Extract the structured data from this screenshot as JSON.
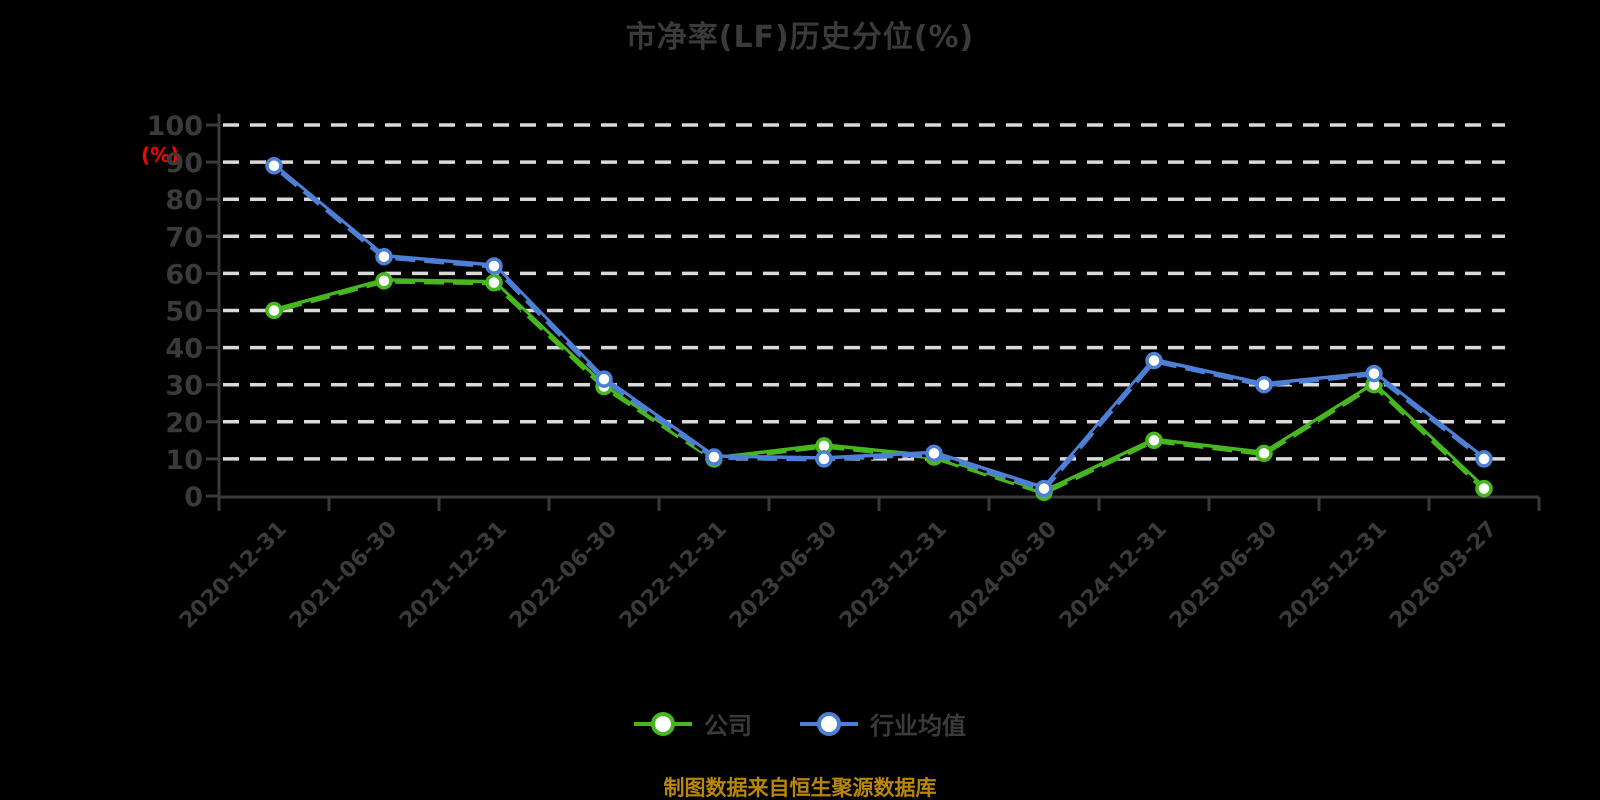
{
  "title": "市净率(LF)历史分位(%)",
  "y_axis_unit_label": "(%)",
  "footer": "制图数据来自恒生聚源数据库",
  "colors": {
    "background": "#000000",
    "title_text": "#3a3a3a",
    "axis_and_labels": "#3a3a3a",
    "gridline": "#d9d9d9",
    "unit_label_red": "#ff0000",
    "footer_gold": "#b8860b",
    "company_green": "#47b71f",
    "industry_blue": "#4d7fd6",
    "marker_fill": "#ffffff"
  },
  "chart_data": {
    "type": "line",
    "title": "市净率(LF)历史分位(%)",
    "xlabel": "",
    "ylabel": "(%)",
    "ylim": [
      0,
      100
    ],
    "yticks": [
      0,
      10,
      20,
      30,
      40,
      50,
      60,
      70,
      80,
      90,
      100
    ],
    "grid": "horizontal dashed white on black",
    "legend_position": "bottom",
    "marker": "circle-white-filled",
    "categories": [
      "2020-12-31",
      "2021-06-30",
      "2021-12-31",
      "2022-06-30",
      "2022-12-31",
      "2023-06-30",
      "2023-12-31",
      "2024-06-30",
      "2024-12-31",
      "2025-06-30",
      "2025-12-31",
      "2026-03-27"
    ],
    "series": [
      {
        "name": "公司",
        "color": "#47b71f",
        "values": [
          50,
          58,
          57.5,
          29.5,
          10,
          13.5,
          10.5,
          1,
          15,
          11.5,
          30,
          2
        ]
      },
      {
        "name": "行业均值",
        "color": "#4d7fd6",
        "values": [
          89,
          64.5,
          62,
          31.5,
          10.5,
          10,
          11.5,
          2,
          36.5,
          30,
          33,
          10
        ]
      }
    ]
  }
}
